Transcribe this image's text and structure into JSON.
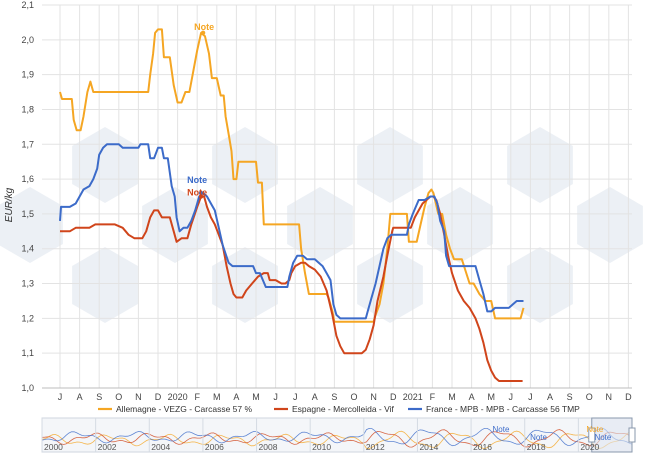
{
  "chart_data": {
    "type": "line",
    "ylabel": "EUR/kg",
    "ylim": [
      1.0,
      2.1
    ],
    "y_ticks": [
      "1,0",
      "1,1",
      "1,2",
      "1,3",
      "1,4",
      "1,5",
      "1,6",
      "1,7",
      "1,8",
      "1,9",
      "2,0",
      "2,1"
    ],
    "x_ticks": [
      "J",
      "A",
      "S",
      "O",
      "N",
      "D",
      "2020",
      "F",
      "M",
      "A",
      "M",
      "J",
      "J",
      "A",
      "S",
      "O",
      "N",
      "D",
      "2021",
      "F",
      "M",
      "A",
      "M",
      "J",
      "J",
      "A",
      "S",
      "O",
      "N",
      "D"
    ],
    "grid": true,
    "legend_position": "bottom",
    "series": [
      {
        "name": "Allemagne - VEZG - Carcasse 57 %",
        "color": "#F5A623",
        "points": [
          [
            0,
            1.85
          ],
          [
            0.1,
            1.83
          ],
          [
            0.6,
            1.83
          ],
          [
            0.7,
            1.77
          ],
          [
            0.85,
            1.74
          ],
          [
            1.05,
            1.74
          ],
          [
            1.2,
            1.78
          ],
          [
            1.4,
            1.85
          ],
          [
            1.55,
            1.88
          ],
          [
            1.7,
            1.85
          ],
          [
            2.5,
            1.85
          ],
          [
            3.5,
            1.85
          ],
          [
            4.5,
            1.85
          ],
          [
            4.6,
            1.9
          ],
          [
            4.75,
            1.96
          ],
          [
            4.85,
            2.02
          ],
          [
            5.0,
            2.03
          ],
          [
            5.2,
            2.03
          ],
          [
            5.3,
            1.95
          ],
          [
            5.6,
            1.95
          ],
          [
            5.8,
            1.87
          ],
          [
            6.0,
            1.82
          ],
          [
            6.2,
            1.82
          ],
          [
            6.4,
            1.85
          ],
          [
            6.6,
            1.85
          ],
          [
            6.8,
            1.91
          ],
          [
            7.0,
            1.97
          ],
          [
            7.2,
            2.02
          ],
          [
            7.4,
            2.01
          ],
          [
            7.6,
            1.96
          ],
          [
            7.75,
            1.89
          ],
          [
            8.0,
            1.89
          ],
          [
            8.2,
            1.84
          ],
          [
            8.35,
            1.84
          ],
          [
            8.45,
            1.78
          ],
          [
            8.6,
            1.73
          ],
          [
            8.75,
            1.68
          ],
          [
            8.85,
            1.6
          ],
          [
            9.0,
            1.6
          ],
          [
            9.1,
            1.65
          ],
          [
            9.3,
            1.65
          ],
          [
            9.8,
            1.65
          ],
          [
            10.0,
            1.65
          ],
          [
            10.1,
            1.59
          ],
          [
            10.3,
            1.59
          ],
          [
            10.4,
            1.47
          ],
          [
            10.9,
            1.47
          ],
          [
            11.4,
            1.47
          ],
          [
            11.8,
            1.47
          ],
          [
            12.0,
            1.47
          ],
          [
            12.2,
            1.47
          ],
          [
            12.3,
            1.4
          ],
          [
            12.5,
            1.33
          ],
          [
            12.7,
            1.27
          ],
          [
            13.3,
            1.27
          ],
          [
            13.6,
            1.27
          ],
          [
            13.7,
            1.26
          ],
          [
            13.9,
            1.22
          ],
          [
            14.0,
            1.19
          ],
          [
            14.5,
            1.19
          ],
          [
            15.0,
            1.19
          ],
          [
            15.5,
            1.19
          ],
          [
            16.0,
            1.19
          ],
          [
            16.1,
            1.21
          ],
          [
            16.3,
            1.24
          ],
          [
            16.5,
            1.3
          ],
          [
            16.7,
            1.4
          ],
          [
            16.85,
            1.5
          ],
          [
            17.5,
            1.5
          ],
          [
            17.7,
            1.5
          ],
          [
            17.8,
            1.42
          ],
          [
            18.0,
            1.42
          ],
          [
            18.2,
            1.42
          ],
          [
            18.4,
            1.47
          ],
          [
            18.6,
            1.52
          ],
          [
            18.8,
            1.56
          ],
          [
            18.95,
            1.57
          ],
          [
            19.05,
            1.56
          ],
          [
            19.3,
            1.5
          ],
          [
            19.5,
            1.5
          ],
          [
            19.7,
            1.44
          ],
          [
            19.9,
            1.4
          ],
          [
            20.1,
            1.37
          ],
          [
            20.5,
            1.37
          ],
          [
            20.9,
            1.3
          ],
          [
            21.1,
            1.3
          ],
          [
            21.4,
            1.27
          ],
          [
            21.7,
            1.25
          ],
          [
            22.0,
            1.25
          ],
          [
            22.2,
            1.2
          ],
          [
            22.6,
            1.2
          ],
          [
            23.0,
            1.2
          ],
          [
            23.5,
            1.2
          ],
          [
            23.65,
            1.23
          ]
        ]
      },
      {
        "name": "Espagne - Mercolleida - Vif",
        "color": "#D0451B",
        "points": [
          [
            0,
            1.45
          ],
          [
            0.5,
            1.45
          ],
          [
            0.8,
            1.46
          ],
          [
            1.5,
            1.46
          ],
          [
            1.8,
            1.47
          ],
          [
            2.5,
            1.47
          ],
          [
            2.8,
            1.47
          ],
          [
            3.2,
            1.46
          ],
          [
            3.5,
            1.44
          ],
          [
            3.8,
            1.43
          ],
          [
            4.2,
            1.43
          ],
          [
            4.4,
            1.45
          ],
          [
            4.6,
            1.49
          ],
          [
            4.8,
            1.51
          ],
          [
            5.0,
            1.51
          ],
          [
            5.2,
            1.49
          ],
          [
            5.6,
            1.49
          ],
          [
            5.8,
            1.45
          ],
          [
            5.95,
            1.42
          ],
          [
            6.2,
            1.43
          ],
          [
            6.5,
            1.43
          ],
          [
            6.7,
            1.47
          ],
          [
            7.0,
            1.52
          ],
          [
            7.2,
            1.55
          ],
          [
            7.35,
            1.55
          ],
          [
            7.5,
            1.52
          ],
          [
            7.7,
            1.49
          ],
          [
            7.9,
            1.47
          ],
          [
            8.1,
            1.44
          ],
          [
            8.3,
            1.41
          ],
          [
            8.5,
            1.35
          ],
          [
            8.7,
            1.3
          ],
          [
            8.85,
            1.27
          ],
          [
            9.0,
            1.26
          ],
          [
            9.3,
            1.26
          ],
          [
            9.5,
            1.28
          ],
          [
            9.8,
            1.3
          ],
          [
            10.1,
            1.32
          ],
          [
            10.4,
            1.33
          ],
          [
            10.6,
            1.33
          ],
          [
            10.7,
            1.31
          ],
          [
            11.0,
            1.31
          ],
          [
            11.3,
            1.3
          ],
          [
            11.5,
            1.3
          ],
          [
            11.7,
            1.31
          ],
          [
            11.8,
            1.33
          ],
          [
            12.0,
            1.35
          ],
          [
            12.3,
            1.36
          ],
          [
            12.5,
            1.36
          ],
          [
            12.7,
            1.35
          ],
          [
            13.0,
            1.34
          ],
          [
            13.3,
            1.32
          ],
          [
            13.6,
            1.28
          ],
          [
            13.9,
            1.21
          ],
          [
            14.1,
            1.15
          ],
          [
            14.3,
            1.12
          ],
          [
            14.5,
            1.1
          ],
          [
            14.8,
            1.1
          ],
          [
            15.0,
            1.1
          ],
          [
            15.4,
            1.1
          ],
          [
            15.6,
            1.11
          ],
          [
            15.8,
            1.14
          ],
          [
            16.0,
            1.18
          ],
          [
            16.2,
            1.25
          ],
          [
            16.5,
            1.32
          ],
          [
            16.7,
            1.38
          ],
          [
            16.95,
            1.45
          ],
          [
            17.0,
            1.46
          ],
          [
            17.5,
            1.46
          ],
          [
            17.7,
            1.46
          ],
          [
            17.9,
            1.46
          ],
          [
            18.1,
            1.49
          ],
          [
            18.3,
            1.51
          ],
          [
            18.5,
            1.53
          ],
          [
            18.7,
            1.54
          ],
          [
            18.9,
            1.55
          ],
          [
            19.05,
            1.55
          ],
          [
            19.2,
            1.54
          ],
          [
            19.4,
            1.5
          ],
          [
            19.6,
            1.44
          ],
          [
            19.8,
            1.38
          ],
          [
            20.0,
            1.33
          ],
          [
            20.3,
            1.28
          ],
          [
            20.6,
            1.25
          ],
          [
            20.9,
            1.23
          ],
          [
            21.2,
            1.2
          ],
          [
            21.4,
            1.17
          ],
          [
            21.6,
            1.13
          ],
          [
            21.8,
            1.08
          ],
          [
            22.0,
            1.05
          ],
          [
            22.2,
            1.03
          ],
          [
            22.4,
            1.02
          ],
          [
            22.8,
            1.02
          ],
          [
            23.3,
            1.02
          ],
          [
            23.6,
            1.02
          ]
        ]
      },
      {
        "name": "France - MPB - MPB - Carcasse 56 TMP",
        "color": "#3C6BC9",
        "points": [
          [
            0,
            1.48
          ],
          [
            0.05,
            1.52
          ],
          [
            0.5,
            1.52
          ],
          [
            0.8,
            1.53
          ],
          [
            1.0,
            1.55
          ],
          [
            1.2,
            1.57
          ],
          [
            1.5,
            1.58
          ],
          [
            1.7,
            1.6
          ],
          [
            1.9,
            1.63
          ],
          [
            2.0,
            1.67
          ],
          [
            2.2,
            1.69
          ],
          [
            2.4,
            1.7
          ],
          [
            3.0,
            1.7
          ],
          [
            3.2,
            1.69
          ],
          [
            3.8,
            1.69
          ],
          [
            4.0,
            1.69
          ],
          [
            4.1,
            1.7
          ],
          [
            4.5,
            1.7
          ],
          [
            4.6,
            1.66
          ],
          [
            4.8,
            1.66
          ],
          [
            5.0,
            1.69
          ],
          [
            5.2,
            1.69
          ],
          [
            5.3,
            1.66
          ],
          [
            5.5,
            1.66
          ],
          [
            5.7,
            1.58
          ],
          [
            5.85,
            1.55
          ],
          [
            5.95,
            1.49
          ],
          [
            6.1,
            1.45
          ],
          [
            6.3,
            1.46
          ],
          [
            6.5,
            1.46
          ],
          [
            6.7,
            1.48
          ],
          [
            6.9,
            1.51
          ],
          [
            7.1,
            1.55
          ],
          [
            7.3,
            1.56
          ],
          [
            7.5,
            1.55
          ],
          [
            7.7,
            1.53
          ],
          [
            7.9,
            1.51
          ],
          [
            8.1,
            1.46
          ],
          [
            8.3,
            1.41
          ],
          [
            8.6,
            1.36
          ],
          [
            8.8,
            1.35
          ],
          [
            9.2,
            1.35
          ],
          [
            9.5,
            1.35
          ],
          [
            9.7,
            1.35
          ],
          [
            9.85,
            1.35
          ],
          [
            10.0,
            1.33
          ],
          [
            10.2,
            1.33
          ],
          [
            10.5,
            1.29
          ],
          [
            10.8,
            1.29
          ],
          [
            11.2,
            1.29
          ],
          [
            11.4,
            1.29
          ],
          [
            11.6,
            1.29
          ],
          [
            11.7,
            1.32
          ],
          [
            11.9,
            1.36
          ],
          [
            12.1,
            1.38
          ],
          [
            12.4,
            1.38
          ],
          [
            12.6,
            1.37
          ],
          [
            13.0,
            1.37
          ],
          [
            13.2,
            1.36
          ],
          [
            13.4,
            1.35
          ],
          [
            13.6,
            1.33
          ],
          [
            13.8,
            1.31
          ],
          [
            13.95,
            1.24
          ],
          [
            14.1,
            1.21
          ],
          [
            14.3,
            1.2
          ],
          [
            14.6,
            1.2
          ],
          [
            15.0,
            1.2
          ],
          [
            15.4,
            1.2
          ],
          [
            15.6,
            1.2
          ],
          [
            15.7,
            1.22
          ],
          [
            15.9,
            1.26
          ],
          [
            16.1,
            1.3
          ],
          [
            16.3,
            1.35
          ],
          [
            16.5,
            1.4
          ],
          [
            16.7,
            1.43
          ],
          [
            16.9,
            1.44
          ],
          [
            17.2,
            1.44
          ],
          [
            17.5,
            1.44
          ],
          [
            17.7,
            1.44
          ],
          [
            17.8,
            1.47
          ],
          [
            18.0,
            1.5
          ],
          [
            18.3,
            1.54
          ],
          [
            18.6,
            1.54
          ],
          [
            18.9,
            1.55
          ],
          [
            19.1,
            1.55
          ],
          [
            19.25,
            1.53
          ],
          [
            19.4,
            1.48
          ],
          [
            19.6,
            1.45
          ],
          [
            19.7,
            1.38
          ],
          [
            19.85,
            1.35
          ],
          [
            20.2,
            1.35
          ],
          [
            20.6,
            1.35
          ],
          [
            20.9,
            1.35
          ],
          [
            21.2,
            1.35
          ],
          [
            21.4,
            1.31
          ],
          [
            21.6,
            1.27
          ],
          [
            21.8,
            1.22
          ],
          [
            22.0,
            1.22
          ],
          [
            22.2,
            1.23
          ],
          [
            22.6,
            1.23
          ],
          [
            22.9,
            1.23
          ],
          [
            23.1,
            1.24
          ],
          [
            23.3,
            1.25
          ],
          [
            23.65,
            1.25
          ]
        ]
      }
    ],
    "annotations": [
      {
        "text": "Note",
        "series": 0,
        "x": 7.3,
        "y": 2.02
      },
      {
        "text": "Note",
        "series": 2,
        "x": 7.2,
        "y": 1.56
      },
      {
        "text": "Note",
        "series": 1,
        "x": 7.2,
        "y": 1.55
      }
    ],
    "navigator": {
      "year_labels": [
        "2000",
        "2002",
        "2004",
        "2006",
        "2008",
        "2010",
        "2012",
        "2014",
        "2016",
        "2018",
        "2020"
      ],
      "year_start": 2000,
      "year_end": 2022,
      "window": [
        2020.5,
        2022.0
      ],
      "notes": [
        {
          "text": "Note",
          "year": 2016.8,
          "color": "#3C6BC9"
        },
        {
          "text": "Note",
          "year": 2018.2,
          "color": "#3C6BC9"
        },
        {
          "text": "Note",
          "year": 2020.3,
          "color": "#F5A623"
        },
        {
          "text": "Note",
          "year": 2020.6,
          "color": "#3C6BC9"
        }
      ]
    }
  }
}
